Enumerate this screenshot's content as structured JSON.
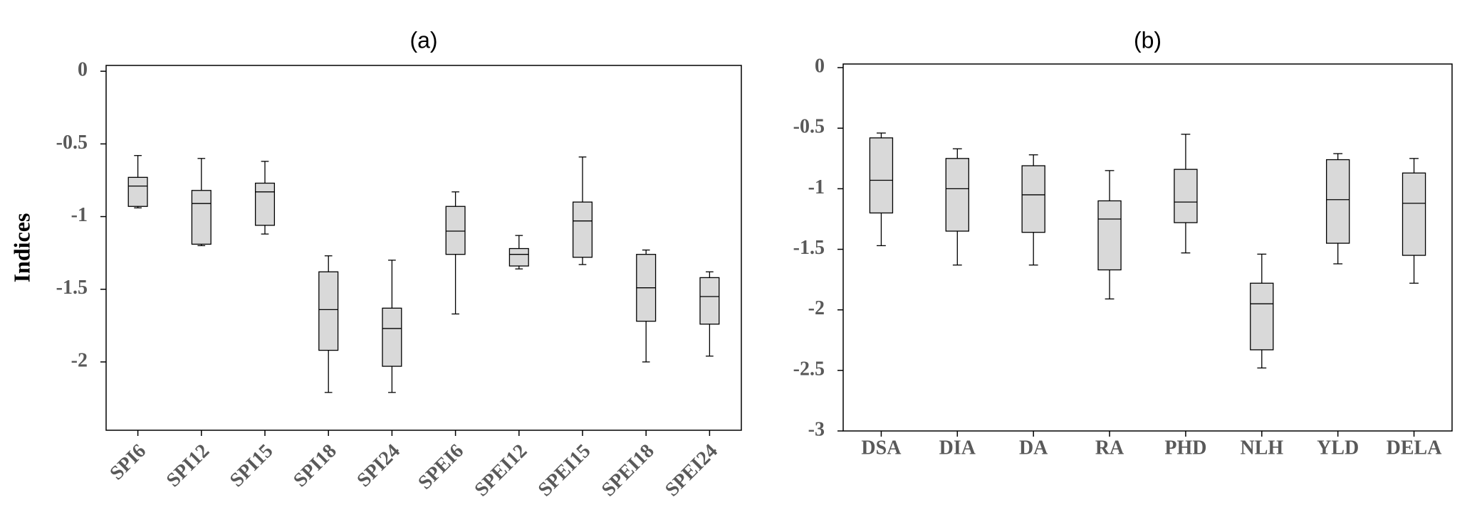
{
  "chart_data": [
    {
      "type": "box",
      "title": "(a)",
      "y_label": "Indices",
      "color": "#d9d9d9",
      "categories": [
        "SPI6",
        "SPI12",
        "SPI15",
        "SPI18",
        "SPI24",
        "SPEI6",
        "SPEI12",
        "SPEI15",
        "SPEI18",
        "SPEI24"
      ],
      "boxes": [
        {
          "min": -0.94,
          "q1": -0.93,
          "median": -0.79,
          "q3": -0.73,
          "max": -0.58
        },
        {
          "min": -1.2,
          "q1": -1.19,
          "median": -0.91,
          "q3": -0.82,
          "max": -0.6
        },
        {
          "min": -1.12,
          "q1": -1.06,
          "median": -0.83,
          "q3": -0.77,
          "max": -0.62
        },
        {
          "min": -2.21,
          "q1": -1.92,
          "median": -1.64,
          "q3": -1.38,
          "max": -1.27
        },
        {
          "min": -2.21,
          "q1": -2.03,
          "median": -1.77,
          "q3": -1.63,
          "max": -1.3
        },
        {
          "min": -1.67,
          "q1": -1.26,
          "median": -1.1,
          "q3": -0.93,
          "max": -0.83
        },
        {
          "min": -1.36,
          "q1": -1.34,
          "median": -1.26,
          "q3": -1.22,
          "max": -1.13
        },
        {
          "min": -1.33,
          "q1": -1.28,
          "median": -1.03,
          "q3": -0.9,
          "max": -0.59
        },
        {
          "min": -2.0,
          "q1": -1.72,
          "median": -1.49,
          "q3": -1.26,
          "max": -1.23
        },
        {
          "min": -1.96,
          "q1": -1.74,
          "median": -1.55,
          "q3": -1.42,
          "max": -1.38
        }
      ],
      "ylim": [
        -2.47,
        0.04
      ],
      "yticks": [
        0,
        -0.5,
        -1,
        -1.5,
        -2
      ]
    },
    {
      "type": "box",
      "title": "(b)",
      "color": "#d9d9d9",
      "categories": [
        "DSA",
        "DIA",
        "DA",
        "RA",
        "PHD",
        "NLH",
        "YLD",
        "DELA"
      ],
      "boxes": [
        {
          "min": -1.47,
          "q1": -1.2,
          "median": -0.93,
          "q3": -0.58,
          "max": -0.54
        },
        {
          "min": -1.63,
          "q1": -1.35,
          "median": -1.0,
          "q3": -0.75,
          "max": -0.67
        },
        {
          "min": -1.63,
          "q1": -1.36,
          "median": -1.05,
          "q3": -0.81,
          "max": -0.72
        },
        {
          "min": -1.91,
          "q1": -1.67,
          "median": -1.25,
          "q3": -1.1,
          "max": -0.85
        },
        {
          "min": -1.53,
          "q1": -1.28,
          "median": -1.11,
          "q3": -0.84,
          "max": -0.55
        },
        {
          "min": -2.48,
          "q1": -2.33,
          "median": -1.95,
          "q3": -1.78,
          "max": -1.54
        },
        {
          "min": -1.62,
          "q1": -1.45,
          "median": -1.09,
          "q3": -0.76,
          "max": -0.71
        },
        {
          "min": -1.78,
          "q1": -1.55,
          "median": -1.12,
          "q3": -0.87,
          "max": -0.75
        }
      ],
      "ylim": [
        -3,
        0.03
      ],
      "yticks": [
        0,
        -0.5,
        -1,
        -1.5,
        -2,
        -2.5,
        -3
      ]
    }
  ]
}
